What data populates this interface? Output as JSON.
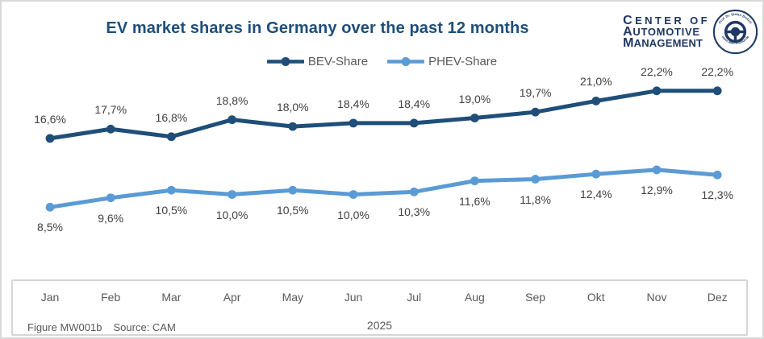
{
  "title": "EV market shares in Germany over the past 12 months",
  "logo": {
    "line1": "CENTER OF",
    "line2": "AUTOMOTIVE",
    "line3": "MANAGEMENT",
    "emblem_top": "Prof. Dr. Stefan Bratzel",
    "emblem_bottom": "www.auto-institut.de"
  },
  "footer": {
    "figure": "Figure MW001b",
    "source": "Source: CAM"
  },
  "colors": {
    "bev": "#1f4e79",
    "phev": "#5b9bd5",
    "title": "#1f4e79",
    "logo_navy": "#1f3864",
    "label_text": "#404040",
    "axis_text": "#595959",
    "border": "#d6d6d6"
  },
  "chart_data": {
    "type": "line",
    "title": "EV market shares in Germany over the past 12 months",
    "categories": [
      "Jan",
      "Feb",
      "Mar",
      "Apr",
      "May",
      "Jun",
      "Jul",
      "Aug",
      "Sep",
      "Okt",
      "Nov",
      "Dez"
    ],
    "year_label": "2025",
    "series": [
      {
        "name": "BEV-Share",
        "color": "#1f4e79",
        "values": [
          16.6,
          17.7,
          16.8,
          18.8,
          18.0,
          18.4,
          18.4,
          19.0,
          19.7,
          21.0,
          22.2,
          22.2
        ],
        "labels": [
          "16,6%",
          "17,7%",
          "16,8%",
          "18,8%",
          "18,0%",
          "18,4%",
          "18,4%",
          "19,0%",
          "19,7%",
          "21,0%",
          "22,2%",
          "22,2%"
        ],
        "label_position": "above"
      },
      {
        "name": "PHEV-Share",
        "color": "#5b9bd5",
        "values": [
          8.5,
          9.6,
          10.5,
          10.0,
          10.5,
          10.0,
          10.3,
          11.6,
          11.8,
          12.4,
          12.9,
          12.3
        ],
        "labels": [
          "8,5%",
          "9,6%",
          "10,5%",
          "10,0%",
          "10,5%",
          "10,0%",
          "10,3%",
          "11,6%",
          "11,8%",
          "12,4%",
          "12,9%",
          "12,3%"
        ],
        "label_position": "below"
      }
    ],
    "xlabel": "",
    "ylabel": "",
    "ylim": [
      0,
      26
    ],
    "y_axis_visible": false,
    "grid": false,
    "legend_position": "top",
    "value_format": "percent-comma-decimal"
  }
}
